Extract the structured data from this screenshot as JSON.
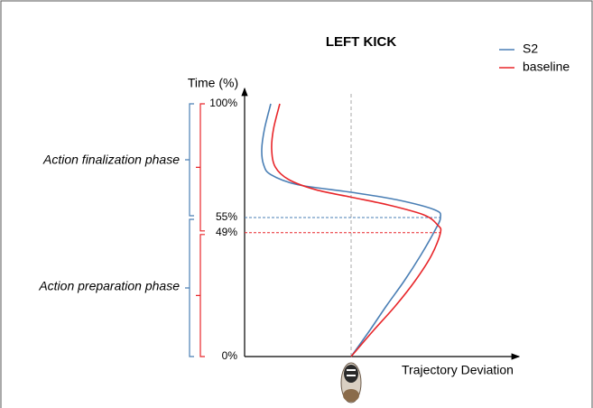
{
  "chart_data": {
    "type": "line",
    "title": "LEFT KICK",
    "xlabel": "Trajectory Deviation",
    "ylabel": "Time (%)",
    "xlim": [
      -1.18,
      1.86
    ],
    "ylim": [
      0,
      100
    ],
    "yticks": [
      {
        "value": 0,
        "label": "0%"
      },
      {
        "value": 49,
        "label": "49%"
      },
      {
        "value": 55,
        "label": "55%"
      },
      {
        "value": 100,
        "label": "100%"
      }
    ],
    "legend": "top-right",
    "annotations": [
      "Action finalization phase",
      "Action preparation phase"
    ],
    "series": [
      {
        "name": "S2",
        "color": "#4a7fb5",
        "x": [
          0,
          0.2,
          0.39,
          0.59,
          0.77,
          0.93,
          0.99,
          0.93,
          0.51,
          0,
          -0.59,
          -0.89,
          -0.97,
          -0.99,
          -0.96,
          -0.89
        ],
        "values": [
          0,
          10,
          20,
          30,
          40,
          50,
          55,
          58,
          62,
          65,
          68,
          72,
          76,
          82,
          90,
          100
        ]
      },
      {
        "name": "baseline",
        "color": "#e8262a",
        "x": [
          0,
          0.24,
          0.49,
          0.71,
          0.89,
          0.99,
          0.96,
          0.81,
          0.41,
          0.01,
          -0.39,
          -0.69,
          -0.84,
          -0.88,
          -0.86,
          -0.79
        ],
        "values": [
          0,
          10,
          20,
          30,
          40,
          49,
          52,
          56,
          60,
          63,
          66,
          70,
          75,
          82,
          90,
          100
        ]
      }
    ]
  }
}
